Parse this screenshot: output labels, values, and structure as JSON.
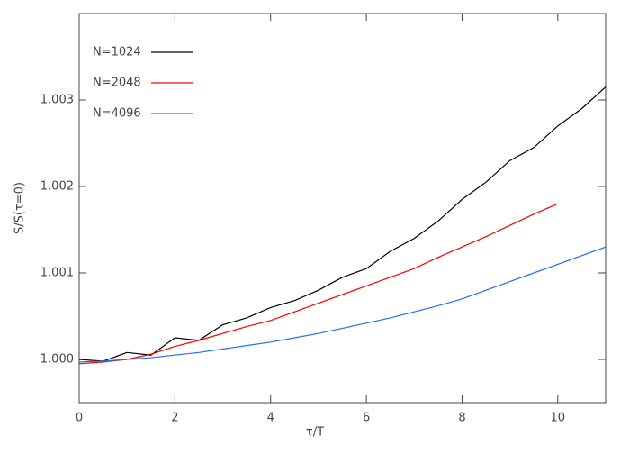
{
  "chart_data": {
    "type": "line",
    "xlabel": "τ/T",
    "ylabel": "S/S(τ=0)",
    "x": [
      0,
      0.5,
      1,
      1.5,
      2,
      2.5,
      3,
      3.5,
      4,
      4.5,
      5,
      5.5,
      6,
      6.5,
      7,
      7.5,
      8,
      8.5,
      9,
      9.5,
      10,
      10.5,
      11
    ],
    "series": [
      {
        "name": "N=1024",
        "color": "#000000",
        "values": [
          1.0,
          0.99998,
          1.00008,
          1.00005,
          1.00025,
          1.00022,
          1.0004,
          1.00048,
          1.0006,
          1.00068,
          1.0008,
          1.00095,
          1.00105,
          1.00125,
          1.0014,
          1.0016,
          1.00185,
          1.00205,
          1.0023,
          1.00245,
          1.0027,
          1.0029,
          1.00315
        ]
      },
      {
        "name": "N=2048",
        "color": "#ff0000",
        "values": [
          0.99995,
          0.99997,
          1.0,
          1.00006,
          1.00015,
          1.00022,
          1.0003,
          1.00038,
          1.00045,
          1.00055,
          1.00065,
          1.00075,
          1.00085,
          1.00095,
          1.00105,
          1.00118,
          1.0013,
          1.00142,
          1.00155,
          1.00168,
          1.0018,
          null,
          null
        ]
      },
      {
        "name": "N=4096",
        "color": "#1f6fff",
        "values": [
          0.99997,
          0.99998,
          1.0,
          1.00002,
          1.00005,
          1.00008,
          1.00012,
          1.00016,
          1.0002,
          1.00025,
          1.0003,
          1.00036,
          1.00042,
          1.00048,
          1.00055,
          1.00062,
          1.0007,
          1.0008,
          1.0009,
          1.001,
          1.0011,
          1.0012,
          1.0013
        ]
      }
    ],
    "xlim": [
      0,
      11
    ],
    "xticks": [
      0,
      2,
      4,
      6,
      8,
      10
    ],
    "ylim": [
      0.9995,
      1.004
    ],
    "yticks": [
      {
        "value": 1,
        "label": "1.000"
      },
      1.001,
      1.002,
      1.003
    ],
    "legend": "upper left"
  }
}
